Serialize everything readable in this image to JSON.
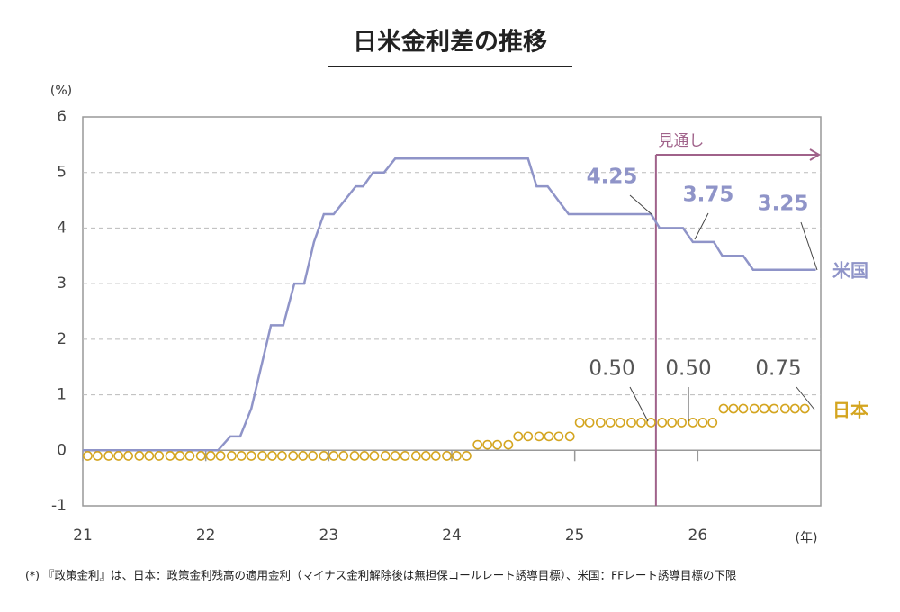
{
  "chart_data": {
    "type": "line",
    "title": "日米金利差の推移",
    "y_unit": "(%)",
    "x_unit": "(年)",
    "footnote": "(*) 『政策金利』は、日本：政策金利残高の適用金利（マイナス金利解除後は無担保コールレート誘導目標）、米国：FFレート誘導目標の下限",
    "xlim": [
      21,
      27
    ],
    "xticks": [
      21,
      22,
      23,
      24,
      25,
      26
    ],
    "ylim": [
      -1,
      6
    ],
    "yticks": [
      -1,
      0,
      1,
      2,
      3,
      4,
      5,
      6
    ],
    "grid": true,
    "forecast": {
      "label": "見通し",
      "x": 25.66
    },
    "series": [
      {
        "name": "米国",
        "color": "#8f94c8",
        "x": [
          21,
          22.1,
          22.2,
          22.28,
          22.37,
          22.53,
          22.63,
          22.72,
          22.8,
          22.88,
          22.96,
          23.04,
          23.22,
          23.28,
          23.36,
          23.45,
          23.54,
          24.62,
          24.69,
          24.78,
          24.95,
          25.62,
          25.69,
          25.88,
          25.96,
          26.13,
          26.2,
          26.37,
          26.45,
          26.96
        ],
        "values": [
          0,
          0,
          0.25,
          0.25,
          0.75,
          2.25,
          2.25,
          3,
          3,
          3.75,
          4.25,
          4.25,
          4.75,
          4.75,
          5,
          5,
          5.25,
          5.25,
          4.75,
          4.75,
          4.25,
          4.25,
          4,
          4,
          3.75,
          3.75,
          3.5,
          3.5,
          3.25,
          3.25
        ]
      },
      {
        "name": "日本",
        "color": "#d4a520",
        "x": [
          21.04,
          21.12,
          21.21,
          21.29,
          21.37,
          21.46,
          21.54,
          21.62,
          21.71,
          21.79,
          21.87,
          21.96,
          22.04,
          22.12,
          22.21,
          22.29,
          22.37,
          22.46,
          22.54,
          22.62,
          22.71,
          22.79,
          22.87,
          22.96,
          23.04,
          23.12,
          23.21,
          23.29,
          23.37,
          23.46,
          23.54,
          23.62,
          23.71,
          23.79,
          23.87,
          23.96,
          24.04,
          24.12,
          24.21,
          24.29,
          24.37,
          24.46,
          24.54,
          24.62,
          24.71,
          24.79,
          24.87,
          24.96,
          25.04,
          25.12,
          25.21,
          25.29,
          25.37,
          25.46,
          25.54,
          25.62,
          25.71,
          25.79,
          25.87,
          25.96,
          26.04,
          26.12,
          26.21,
          26.29,
          26.37,
          26.46,
          26.54,
          26.62,
          26.71,
          26.79,
          26.87
        ],
        "values": [
          -0.1,
          -0.1,
          -0.1,
          -0.1,
          -0.1,
          -0.1,
          -0.1,
          -0.1,
          -0.1,
          -0.1,
          -0.1,
          -0.1,
          -0.1,
          -0.1,
          -0.1,
          -0.1,
          -0.1,
          -0.1,
          -0.1,
          -0.1,
          -0.1,
          -0.1,
          -0.1,
          -0.1,
          -0.1,
          -0.1,
          -0.1,
          -0.1,
          -0.1,
          -0.1,
          -0.1,
          -0.1,
          -0.1,
          -0.1,
          -0.1,
          -0.1,
          -0.1,
          -0.1,
          0.1,
          0.1,
          0.1,
          0.1,
          0.25,
          0.25,
          0.25,
          0.25,
          0.25,
          0.25,
          0.5,
          0.5,
          0.5,
          0.5,
          0.5,
          0.5,
          0.5,
          0.5,
          0.5,
          0.5,
          0.5,
          0.5,
          0.5,
          0.5,
          0.75,
          0.75,
          0.75,
          0.75,
          0.75,
          0.75,
          0.75,
          0.75,
          0.75
        ]
      }
    ],
    "annotations": [
      "4.25",
      "3.75",
      "3.25",
      "0.50",
      "0.50",
      "0.75"
    ]
  }
}
